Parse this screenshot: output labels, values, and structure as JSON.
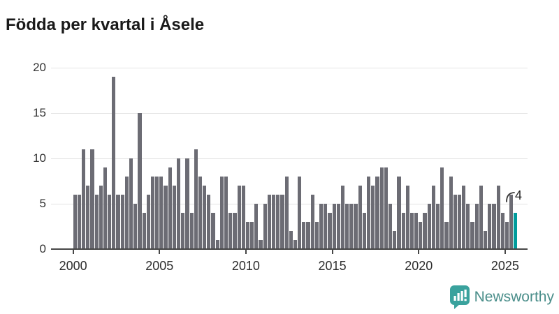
{
  "title": "Födda per kvartal i Åsele",
  "colors": {
    "bar": "#6c6c74",
    "highlight": "#009c9c",
    "gridline": "#e4e4e4",
    "axis": "#474747",
    "logo_teal": "#3aa29d",
    "logo_text": "#4a8e8a"
  },
  "logo": {
    "text": "Newsworthy"
  },
  "chart_data": {
    "type": "bar",
    "title": "Födda per kvartal i Åsele",
    "xlabel": "",
    "ylabel": "",
    "start_quarter": "2000 Q1",
    "frequency": "quarterly",
    "values": [
      6,
      6,
      11,
      7,
      11,
      6,
      7,
      9,
      6,
      19,
      6,
      6,
      8,
      10,
      5,
      15,
      4,
      6,
      8,
      8,
      8,
      7,
      9,
      7,
      10,
      4,
      10,
      4,
      11,
      8,
      7,
      6,
      4,
      1,
      8,
      8,
      4,
      4,
      7,
      7,
      3,
      3,
      5,
      1,
      5,
      6,
      6,
      6,
      6,
      8,
      2,
      1,
      8,
      3,
      3,
      6,
      3,
      5,
      5,
      4,
      5,
      5,
      7,
      5,
      5,
      5,
      7,
      4,
      8,
      7,
      8,
      9,
      9,
      5,
      2,
      8,
      4,
      7,
      4,
      4,
      3,
      4,
      5,
      7,
      5,
      9,
      3,
      8,
      6,
      6,
      7,
      5,
      3,
      5,
      7,
      2,
      5,
      5,
      7,
      4,
      3,
      6,
      4
    ],
    "highlight": {
      "index": 102,
      "quarter": "2025 Q3",
      "value": 4,
      "label": "4",
      "color": "#009c9c"
    },
    "y_ticks": [
      0,
      5,
      10,
      15,
      20
    ],
    "ylim": [
      0,
      20
    ],
    "x_tick_years": [
      2000,
      2005,
      2010,
      2015,
      2020,
      2025
    ],
    "x_tick_labels": [
      "2000",
      "2005",
      "2010",
      "2015",
      "2020",
      "2025"
    ],
    "grid": true,
    "legend": "none"
  }
}
